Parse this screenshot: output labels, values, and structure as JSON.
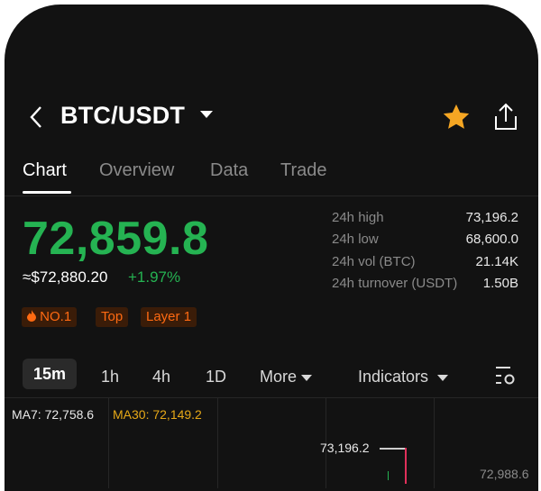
{
  "header": {
    "title": "BTC/USDT",
    "back_icon": "chevron-left-icon",
    "dropdown_icon": "caret-down-icon",
    "favorite_icon": "star-icon",
    "favorite_color": "#f5a623",
    "share_icon": "share-icon"
  },
  "tabs": [
    {
      "label": "Chart",
      "active": true
    },
    {
      "label": "Overview"
    },
    {
      "label": "Data"
    },
    {
      "label": "Trade"
    }
  ],
  "ticker": {
    "price": "72,859.8",
    "usd_equiv": "≈$72,880.20",
    "change": "+1.97%",
    "up_color": "#25b352"
  },
  "stats": [
    {
      "label": "24h high",
      "value": "73,196.2"
    },
    {
      "label": "24h low",
      "value": "68,600.0"
    },
    {
      "label": "24h vol (BTC)",
      "value": "21.14K"
    },
    {
      "label": "24h turnover (USDT)",
      "value": "1.50B"
    }
  ],
  "tags": [
    {
      "label": "NO.1",
      "icon": "flame-icon"
    },
    {
      "label": "Top"
    },
    {
      "label": "Layer 1"
    }
  ],
  "intervals": [
    "15m",
    "1h",
    "4h",
    "1D"
  ],
  "more_label": "More",
  "indicators_label": "Indicators",
  "chart_settings_icon": "chart-settings-icon",
  "chart": {
    "ma7": "MA7: 72,758.6",
    "ma30": "MA30: 72,149.2",
    "high_marker": "73,196.2",
    "right_label": "72,988.6",
    "ma30_color": "#e6a817"
  }
}
